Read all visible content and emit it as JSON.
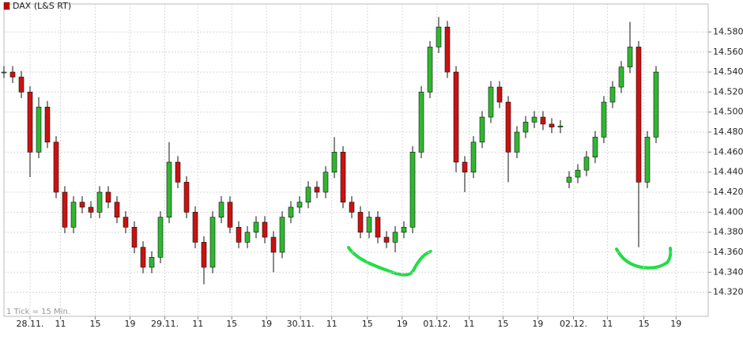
{
  "chart_data": {
    "type": "candlestick",
    "title": "DAX (L&S RT)",
    "note": "1 Tick = 15 Min.",
    "legend_color": "#cc0000",
    "up_color": "#2fb82f",
    "down_color": "#cc1111",
    "grid": true,
    "x": [
      0,
      1,
      2,
      3,
      4,
      5,
      6,
      7,
      8,
      9,
      10,
      11,
      12,
      13,
      14,
      15,
      16,
      17,
      18,
      19,
      20,
      21,
      22,
      23,
      24,
      25,
      26,
      27,
      28,
      29,
      30,
      31,
      32,
      33,
      34,
      35,
      36,
      37,
      38,
      39,
      40,
      41,
      42,
      43,
      44,
      45,
      46,
      47,
      48,
      49,
      50,
      51,
      52,
      53,
      54,
      55,
      56,
      57,
      58,
      59,
      60,
      61,
      62,
      63,
      64,
      65,
      66,
      67,
      68,
      69,
      70,
      71,
      72,
      73,
      74,
      75
    ],
    "open": [
      14540,
      14540,
      14535,
      14520,
      14460,
      14505,
      14470,
      14420,
      14385,
      14410,
      14405,
      14400,
      14420,
      14410,
      14395,
      14385,
      14365,
      14345,
      14355,
      14395,
      14450,
      14430,
      14400,
      14370,
      14345,
      14395,
      14410,
      14385,
      14370,
      14380,
      14390,
      14375,
      14360,
      14395,
      14405,
      14410,
      14425,
      14420,
      14440,
      14460,
      14410,
      14400,
      14380,
      14395,
      14375,
      14370,
      14380,
      14385,
      14460,
      14520,
      14565,
      14585,
      14540,
      14450,
      14440,
      14470,
      14495,
      14525,
      14510,
      14460,
      14480,
      14490,
      14495,
      14488,
      14485,
      14430,
      14435,
      14442,
      14455,
      14475,
      14510,
      14525,
      14545,
      14565,
      14430,
      14475
    ],
    "high": [
      14546,
      14546,
      14541,
      14526,
      14515,
      14511,
      14476,
      14426,
      14416,
      14416,
      14411,
      14426,
      14426,
      14416,
      14401,
      14391,
      14371,
      14361,
      14401,
      14470,
      14456,
      14436,
      14406,
      14376,
      14401,
      14416,
      14416,
      14391,
      14386,
      14396,
      14396,
      14381,
      14401,
      14411,
      14416,
      14431,
      14431,
      14446,
      14475,
      14466,
      14416,
      14406,
      14401,
      14401,
      14381,
      14386,
      14391,
      14466,
      14526,
      14571,
      14595,
      14591,
      14546,
      14456,
      14476,
      14501,
      14531,
      14531,
      14516,
      14486,
      14496,
      14501,
      14501,
      14494,
      14492,
      14441,
      14448,
      14461,
      14481,
      14516,
      14531,
      14551,
      14590,
      14571,
      14481,
      14546
    ],
    "low": [
      14534,
      14529,
      14514,
      14435,
      14454,
      14464,
      14414,
      14379,
      14379,
      14399,
      14394,
      14394,
      14404,
      14389,
      14379,
      14359,
      14339,
      14339,
      14349,
      14389,
      14424,
      14394,
      14364,
      14328,
      14339,
      14389,
      14379,
      14364,
      14364,
      14374,
      14369,
      14340,
      14354,
      14389,
      14399,
      14404,
      14414,
      14414,
      14434,
      14404,
      14394,
      14374,
      14374,
      14369,
      14364,
      14360,
      14374,
      14379,
      14454,
      14514,
      14559,
      14534,
      14440,
      14420,
      14434,
      14464,
      14489,
      14504,
      14430,
      14454,
      14474,
      14484,
      14482,
      14479,
      14479,
      14424,
      14429,
      14436,
      14449,
      14469,
      14504,
      14519,
      14539,
      14365,
      14424,
      14469
    ],
    "close": [
      14540,
      14535,
      14520,
      14460,
      14505,
      14470,
      14420,
      14385,
      14410,
      14405,
      14400,
      14420,
      14410,
      14395,
      14385,
      14365,
      14345,
      14355,
      14395,
      14450,
      14430,
      14400,
      14370,
      14345,
      14395,
      14410,
      14385,
      14370,
      14380,
      14390,
      14375,
      14360,
      14395,
      14405,
      14410,
      14425,
      14420,
      14440,
      14460,
      14410,
      14400,
      14380,
      14395,
      14375,
      14370,
      14380,
      14385,
      14460,
      14520,
      14565,
      14585,
      14540,
      14450,
      14440,
      14470,
      14495,
      14525,
      14510,
      14460,
      14480,
      14490,
      14495,
      14488,
      14485,
      14486,
      14435,
      14442,
      14455,
      14475,
      14510,
      14525,
      14545,
      14565,
      14430,
      14475,
      14540
    ],
    "xlim": [
      0,
      81
    ],
    "xticks": [
      {
        "value": 3,
        "label": "28.11."
      },
      {
        "value": 6.5,
        "label": "11"
      },
      {
        "value": 10.5,
        "label": "15"
      },
      {
        "value": 14.5,
        "label": "19"
      },
      {
        "value": 18.5,
        "label": "29.11."
      },
      {
        "value": 22.3,
        "label": "11"
      },
      {
        "value": 26.2,
        "label": "15"
      },
      {
        "value": 30.2,
        "label": "19"
      },
      {
        "value": 34.1,
        "label": "30.11."
      },
      {
        "value": 37.7,
        "label": "11"
      },
      {
        "value": 41.8,
        "label": "15"
      },
      {
        "value": 45.8,
        "label": "19"
      },
      {
        "value": 49.8,
        "label": "01.12."
      },
      {
        "value": 53.5,
        "label": "11"
      },
      {
        "value": 57.4,
        "label": "15"
      },
      {
        "value": 61.4,
        "label": "19"
      },
      {
        "value": 65.5,
        "label": "02.12."
      },
      {
        "value": 69.4,
        "label": "11"
      },
      {
        "value": 73.6,
        "label": "15"
      },
      {
        "value": 77.3,
        "label": "19"
      }
    ],
    "ylim": [
      14296,
      14608
    ],
    "yticks": [
      {
        "value": 14320,
        "label": "14.320"
      },
      {
        "value": 14340,
        "label": "14.340"
      },
      {
        "value": 14360,
        "label": "14.360"
      },
      {
        "value": 14380,
        "label": "14.380"
      },
      {
        "value": 14400,
        "label": "14.400"
      },
      {
        "value": 14420,
        "label": "14.420"
      },
      {
        "value": 14440,
        "label": "14.440"
      },
      {
        "value": 14460,
        "label": "14.460"
      },
      {
        "value": 14480,
        "label": "14.480"
      },
      {
        "value": 14500,
        "label": "14.500"
      },
      {
        "value": 14520,
        "label": "14.520"
      },
      {
        "value": 14540,
        "label": "14.540"
      },
      {
        "value": 14560,
        "label": "14.560"
      },
      {
        "value": 14580,
        "label": "14.580"
      }
    ]
  }
}
